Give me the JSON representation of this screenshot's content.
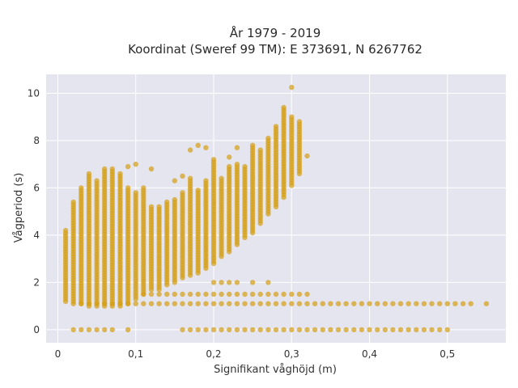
{
  "chart_data": {
    "type": "scatter",
    "title_lines": [
      "År 1979 - 2019",
      "Koordinat (Sweref 99 TM): E 373691, N 6267762"
    ],
    "xlabel": "Signifikant våghöjd (m)",
    "ylabel": "Vågperiod (s)",
    "xlim": [
      -0.015,
      0.575
    ],
    "ylim": [
      -0.55,
      10.8
    ],
    "xticks": [
      0,
      0.1,
      0.2,
      0.3,
      0.4,
      0.5
    ],
    "xtick_labels": [
      "0",
      "0,1",
      "0,2",
      "0,3",
      "0,4",
      "0,5"
    ],
    "yticks": [
      0,
      2,
      4,
      6,
      8,
      10
    ],
    "ytick_labels": [
      "0",
      "2",
      "4",
      "6",
      "8",
      "10"
    ],
    "grid": true,
    "colors": {
      "marker": "#d4a017",
      "plot_bg": "#e5e5f0",
      "grid": "#ffffff"
    },
    "columns": [
      {
        "x": 0.01,
        "ymin": 1.2,
        "ymax": 4.2
      },
      {
        "x": 0.02,
        "ymin": 1.2,
        "ymax": 5.4
      },
      {
        "x": 0.03,
        "ymin": 1.1,
        "ymax": 6.0
      },
      {
        "x": 0.04,
        "ymin": 1.0,
        "ymax": 6.6
      },
      {
        "x": 0.05,
        "ymin": 1.0,
        "ymax": 6.3
      },
      {
        "x": 0.06,
        "ymin": 1.0,
        "ymax": 6.8
      },
      {
        "x": 0.07,
        "ymin": 1.0,
        "ymax": 6.8
      },
      {
        "x": 0.08,
        "ymin": 1.0,
        "ymax": 6.6
      },
      {
        "x": 0.09,
        "ymin": 1.1,
        "ymax": 6.0
      },
      {
        "x": 0.1,
        "ymin": 1.3,
        "ymax": 5.8
      },
      {
        "x": 0.11,
        "ymin": 1.5,
        "ymax": 6.0
      },
      {
        "x": 0.12,
        "ymin": 1.7,
        "ymax": 5.2
      },
      {
        "x": 0.13,
        "ymin": 1.7,
        "ymax": 5.2
      },
      {
        "x": 0.14,
        "ymin": 1.9,
        "ymax": 5.4
      },
      {
        "x": 0.15,
        "ymin": 2.0,
        "ymax": 5.5
      },
      {
        "x": 0.16,
        "ymin": 2.2,
        "ymax": 5.8
      },
      {
        "x": 0.17,
        "ymin": 2.3,
        "ymax": 6.4
      },
      {
        "x": 0.18,
        "ymin": 2.4,
        "ymax": 5.9
      },
      {
        "x": 0.19,
        "ymin": 2.6,
        "ymax": 6.3
      },
      {
        "x": 0.2,
        "ymin": 2.8,
        "ymax": 7.2
      },
      {
        "x": 0.21,
        "ymin": 3.1,
        "ymax": 6.4
      },
      {
        "x": 0.22,
        "ymin": 3.3,
        "ymax": 6.9
      },
      {
        "x": 0.23,
        "ymin": 3.6,
        "ymax": 7.0
      },
      {
        "x": 0.24,
        "ymin": 3.9,
        "ymax": 6.9
      },
      {
        "x": 0.25,
        "ymin": 4.1,
        "ymax": 7.8
      },
      {
        "x": 0.26,
        "ymin": 4.5,
        "ymax": 7.6
      },
      {
        "x": 0.27,
        "ymin": 4.9,
        "ymax": 8.1
      },
      {
        "x": 0.28,
        "ymin": 5.2,
        "ymax": 8.6
      },
      {
        "x": 0.29,
        "ymin": 5.6,
        "ymax": 9.3
      },
      {
        "x": 0.3,
        "ymin": 6.1,
        "ymax": 9.0
      },
      {
        "x": 0.31,
        "ymin": 6.6,
        "ymax": 8.8
      }
    ],
    "outliers": [
      {
        "x": 0.3,
        "y": 10.25
      },
      {
        "x": 0.29,
        "y": 9.4
      },
      {
        "x": 0.32,
        "y": 7.35
      },
      {
        "x": 0.19,
        "y": 7.7
      },
      {
        "x": 0.18,
        "y": 7.8
      },
      {
        "x": 0.17,
        "y": 7.6
      },
      {
        "x": 0.23,
        "y": 7.7
      },
      {
        "x": 0.09,
        "y": 6.9
      },
      {
        "x": 0.1,
        "y": 7.0
      },
      {
        "x": 0.12,
        "y": 6.8
      },
      {
        "x": 0.16,
        "y": 6.5
      },
      {
        "x": 0.15,
        "y": 6.3
      },
      {
        "x": 0.22,
        "y": 7.3
      }
    ],
    "band_1_1": {
      "y": 1.1,
      "x_from": 0.02,
      "x_to": 0.52,
      "step": 0.01
    },
    "band_1_5": {
      "y": 1.5,
      "x_from": 0.11,
      "x_to": 0.32,
      "step": 0.01
    },
    "band_2_0": {
      "xs": [
        0.2,
        0.21,
        0.22,
        0.23,
        0.25,
        0.27
      ]
    },
    "band_1_1_extra": {
      "xs": [
        0.53,
        0.55
      ]
    },
    "zero_row": {
      "xs": [
        0.02,
        0.03,
        0.04,
        0.05,
        0.06,
        0.07,
        0.09,
        0.16,
        0.17,
        0.18,
        0.19,
        0.2,
        0.21,
        0.22,
        0.23,
        0.24,
        0.25,
        0.26,
        0.27,
        0.28,
        0.29,
        0.3,
        0.31,
        0.32,
        0.33,
        0.34,
        0.35,
        0.36,
        0.37,
        0.38,
        0.39,
        0.4,
        0.41,
        0.42,
        0.43,
        0.44,
        0.45,
        0.46,
        0.47,
        0.48,
        0.49,
        0.5
      ]
    }
  }
}
